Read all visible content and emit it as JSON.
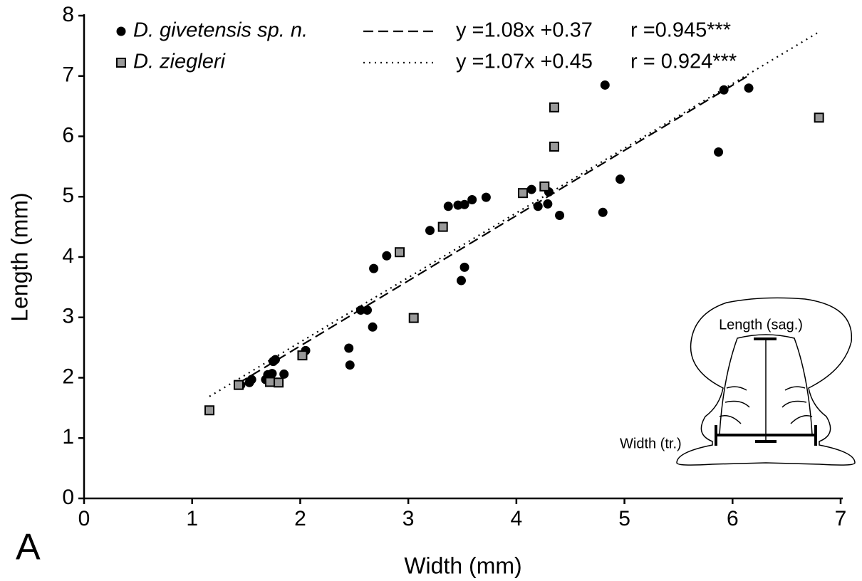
{
  "chart_data": {
    "type": "scatter",
    "panel_label": "A",
    "x_label": "Width (mm)",
    "y_label": "Length (mm)",
    "xlim": [
      0,
      7
    ],
    "ylim": [
      0,
      8
    ],
    "xticks": [
      0,
      1,
      2,
      3,
      4,
      5,
      6,
      7
    ],
    "yticks": [
      0,
      1,
      2,
      3,
      4,
      5,
      6,
      7,
      8
    ],
    "series": [
      {
        "name": "D. givetensis sp. n.",
        "marker": "circle",
        "color": "#000000",
        "x": [
          1.45,
          1.53,
          1.55,
          1.68,
          1.7,
          1.72,
          1.74,
          1.75,
          1.77,
          1.85,
          2.05,
          2.45,
          2.46,
          2.56,
          2.62,
          2.67,
          2.68,
          2.8,
          3.2,
          3.37,
          3.46,
          3.52,
          3.49,
          3.52,
          3.59,
          3.72,
          4.14,
          4.2,
          4.29,
          4.3,
          4.4,
          4.8,
          4.82,
          4.96,
          5.87,
          5.92,
          6.15
        ],
        "values": [
          1.88,
          1.92,
          1.97,
          1.97,
          2.05,
          1.93,
          2.07,
          2.27,
          2.3,
          2.06,
          2.45,
          2.49,
          2.21,
          3.12,
          3.12,
          2.84,
          3.81,
          4.02,
          4.44,
          4.84,
          4.86,
          4.87,
          3.61,
          3.83,
          4.95,
          4.99,
          5.12,
          4.84,
          4.88,
          5.08,
          4.69,
          4.74,
          6.85,
          5.29,
          5.74,
          6.77,
          6.8
        ],
        "fit": {
          "equation": "y =1.08x +0.37",
          "r": "r =0.945***",
          "style": "dashed",
          "x": [
            1.43,
            6.15
          ],
          "values": [
            1.91,
            7.01
          ]
        }
      },
      {
        "name": "D. ziegleri",
        "marker": "square",
        "color": "#999999",
        "x": [
          1.16,
          1.43,
          1.72,
          1.8,
          2.02,
          2.92,
          3.05,
          3.32,
          4.06,
          4.26,
          4.35,
          4.35,
          6.8
        ],
        "values": [
          1.46,
          1.88,
          1.93,
          1.92,
          2.37,
          4.08,
          2.99,
          4.5,
          5.06,
          5.17,
          6.48,
          5.83,
          6.31
        ],
        "fit": {
          "equation": "y =1.07x +0.45",
          "r": "r = 0.924***",
          "style": "dotted",
          "x": [
            1.16,
            6.8
          ],
          "values": [
            1.69,
            7.73
          ]
        }
      }
    ],
    "inset": {
      "labels": [
        "Length (sag.)",
        "Width (tr.)"
      ]
    }
  }
}
